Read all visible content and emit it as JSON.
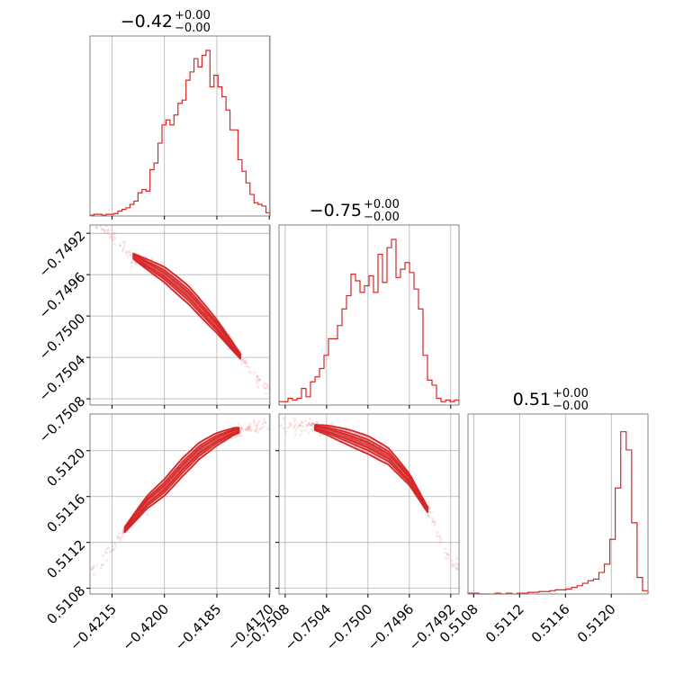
{
  "chart_data": {
    "type": "corner",
    "color": "#d62728",
    "parameters": [
      {
        "title": "−0.42",
        "title_sup": "+0.00",
        "title_sub": "−0.00",
        "range": [
          -0.42213,
          -0.41698
        ],
        "ticks": [
          -0.4215,
          -0.42,
          -0.4185,
          -0.417
        ],
        "tick_labels": [
          "−0.4215",
          "−0.4200",
          "−0.4185",
          "−0.4170"
        ],
        "hist": [
          0.005,
          0.01,
          0.01,
          0.005,
          0.01,
          0.01,
          0.015,
          0.03,
          0.04,
          0.05,
          0.07,
          0.09,
          0.14,
          0.16,
          0.15,
          0.28,
          0.32,
          0.44,
          0.55,
          0.58,
          0.55,
          0.61,
          0.68,
          0.7,
          0.82,
          0.87,
          0.95,
          0.9,
          0.97,
          1.0,
          0.78,
          0.85,
          0.78,
          0.72,
          0.64,
          0.52,
          0.52,
          0.34,
          0.27,
          0.2,
          0.13,
          0.08,
          0.07,
          0.06,
          0.02
        ]
      },
      {
        "title": "−0.75",
        "title_sup": "+0.00",
        "title_sub": "−0.00",
        "range": [
          -0.75086,
          -0.74912
        ],
        "ticks": [
          -0.7508,
          -0.7504,
          -0.75,
          -0.7496,
          -0.7492
        ],
        "tick_labels": [
          "−0.7508",
          "−0.7504",
          "−0.7500",
          "−0.7496",
          "−0.7492"
        ],
        "hist": [
          0.02,
          0.02,
          0.04,
          0.03,
          0.04,
          0.1,
          0.05,
          0.14,
          0.17,
          0.22,
          0.3,
          0.4,
          0.4,
          0.48,
          0.58,
          0.66,
          0.79,
          0.75,
          0.68,
          0.72,
          0.78,
          0.68,
          0.91,
          0.74,
          0.95,
          1.0,
          0.77,
          0.82,
          0.86,
          0.8,
          0.7,
          0.58,
          0.3,
          0.15,
          0.12,
          0.04,
          0.02,
          0.03,
          0.02,
          0.03
        ]
      },
      {
        "title": "0.51",
        "title_sup": "+0.00",
        "title_sub": "−0.00",
        "range": [
          0.51075,
          0.51232
        ],
        "ticks": [
          0.5108,
          0.5112,
          0.5116,
          0.512
        ],
        "tick_labels": [
          "0.5108",
          "0.5112",
          "0.5116",
          "0.5120"
        ],
        "hist": [
          0.005,
          0.005,
          0.0,
          0.0,
          0.0,
          0.005,
          0.0,
          0.005,
          0.0,
          0.005,
          0.005,
          0.01,
          0.01,
          0.015,
          0.015,
          0.02,
          0.025,
          0.025,
          0.03,
          0.04,
          0.05,
          0.065,
          0.08,
          0.09,
          0.13,
          0.18,
          0.33,
          0.64,
          0.98,
          0.87,
          0.43,
          0.1,
          0.02
        ]
      }
    ],
    "pairs": [
      {
        "x_param": 0,
        "y_param": 1,
        "curve": {
          "x": [
            -0.4217,
            -0.421,
            -0.42,
            -0.4193,
            -0.4185,
            -0.4178,
            -0.4172
          ],
          "y": [
            -0.74915,
            -0.7494,
            -0.7496,
            -0.7498,
            -0.7501,
            -0.7504,
            -0.7507
          ]
        }
      },
      {
        "x_param": 0,
        "y_param": 2,
        "curve": {
          "x": [
            -0.422,
            -0.4213,
            -0.4205,
            -0.42,
            -0.4195,
            -0.419,
            -0.4185,
            -0.418,
            -0.4175,
            -0.4172
          ],
          "y": [
            0.51095,
            0.51125,
            0.51155,
            0.51168,
            0.51185,
            0.512,
            0.5121,
            0.51217,
            0.5122,
            0.51222
          ]
        }
      },
      {
        "x_param": 1,
        "y_param": 2,
        "curve": {
          "x": [
            -0.7508,
            -0.7506,
            -0.7504,
            -0.7502,
            -0.75,
            -0.7498,
            -0.7496,
            -0.7494,
            -0.7492
          ],
          "y": [
            0.51222,
            0.51222,
            0.51218,
            0.51212,
            0.51205,
            0.51195,
            0.51175,
            0.51145,
            0.511
          ]
        }
      }
    ]
  }
}
